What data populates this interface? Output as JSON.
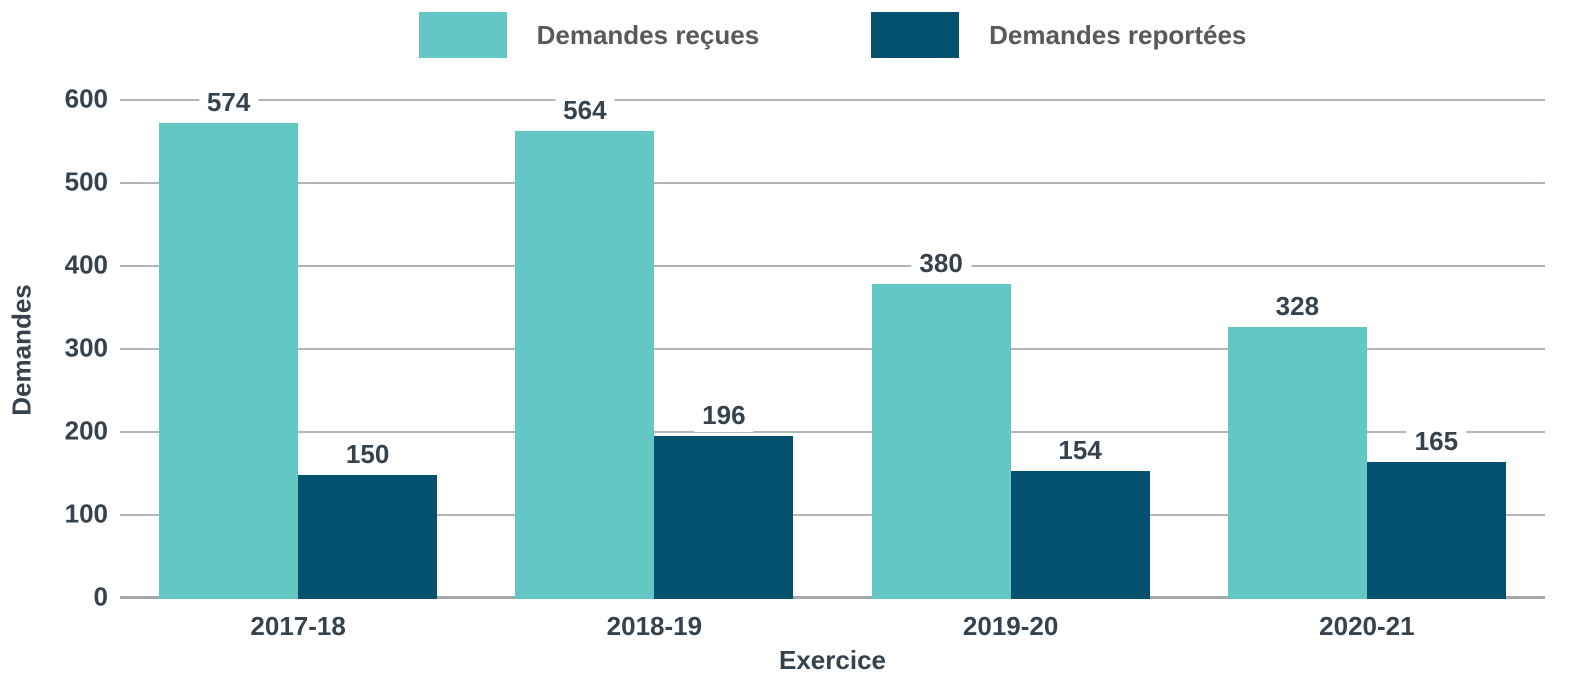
{
  "chart_data": {
    "type": "bar",
    "categories": [
      "2017-18",
      "2018-19",
      "2019-20",
      "2020-21"
    ],
    "series": [
      {
        "name": "Demandes reçues",
        "color": "#63C7C3",
        "values": [
          574,
          564,
          380,
          328
        ]
      },
      {
        "name": "Demandes reportées",
        "color": "#04506F",
        "values": [
          150,
          196,
          154,
          165
        ]
      }
    ],
    "title": "",
    "xlabel": "Exercice",
    "ylabel": "Demandes",
    "ylim": [
      0,
      600
    ],
    "yticks": [
      0,
      100,
      200,
      300,
      400,
      500,
      600
    ],
    "grid": "horizontal",
    "legend_position": "top",
    "value_labels": true
  },
  "colors": {
    "text_dark": "#36424D",
    "legend_text": "#595959",
    "gridline": "#B3B6B9",
    "baseline": "#A6A9AC",
    "background": "#FFFFFF"
  }
}
